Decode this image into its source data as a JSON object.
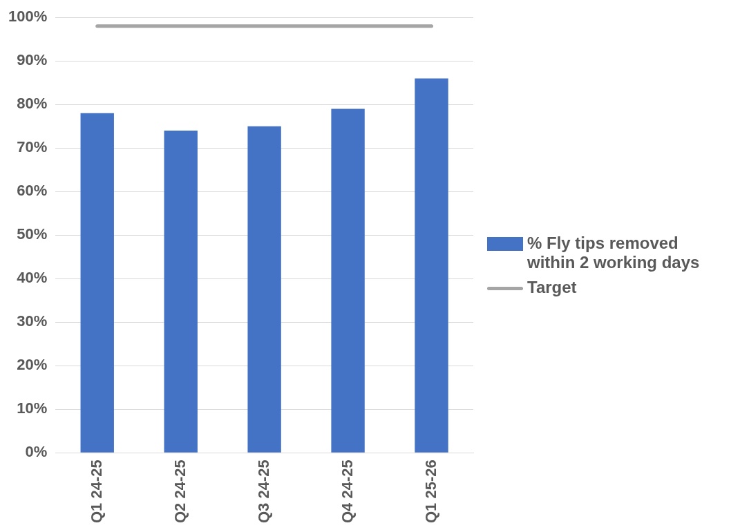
{
  "chart_data": {
    "type": "bar",
    "categories": [
      "Q1 24-25",
      "Q2 24-25",
      "Q3 24-25",
      "Q4 24-25",
      "Q1 25-26"
    ],
    "series": [
      {
        "name": "% Fly tips removed within 2 working days",
        "color": "#4472c4",
        "values": [
          78,
          74,
          75,
          79,
          86
        ]
      },
      {
        "name": "Target",
        "type": "line",
        "color": "#a5a5a5",
        "values": [
          98,
          98,
          98,
          98,
          98
        ]
      }
    ],
    "ylim": [
      0,
      100
    ],
    "yticks": [
      {
        "value": 0,
        "label": "0%"
      },
      {
        "value": 10,
        "label": "10%"
      },
      {
        "value": 20,
        "label": "20%"
      },
      {
        "value": 30,
        "label": "30%"
      },
      {
        "value": 40,
        "label": "40%"
      },
      {
        "value": 50,
        "label": "50%"
      },
      {
        "value": 60,
        "label": "60%"
      },
      {
        "value": 70,
        "label": "70%"
      },
      {
        "value": 80,
        "label": "80%"
      },
      {
        "value": 90,
        "label": "90%"
      },
      {
        "value": 100,
        "label": "100%"
      }
    ],
    "grid": "y",
    "legend": "right",
    "marker": "none"
  }
}
